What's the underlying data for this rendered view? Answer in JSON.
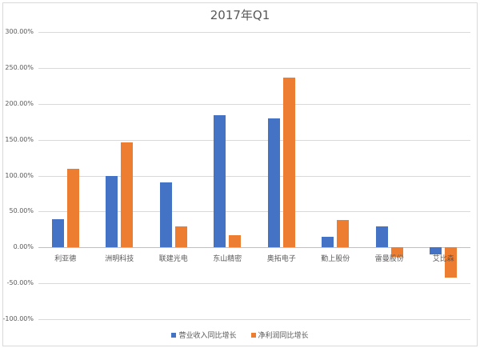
{
  "chart_data": {
    "type": "bar",
    "title": "2017年Q1",
    "xlabel": "",
    "ylabel": "",
    "ylim": [
      -1.0,
      3.0
    ],
    "y_ticks": [
      "300.00%",
      "250.00%",
      "200.00%",
      "150.00%",
      "100.00%",
      "50.00%",
      "0.00%",
      "-50.00%",
      "-100.00%"
    ],
    "y_tick_values": [
      3.0,
      2.5,
      2.0,
      1.5,
      1.0,
      0.5,
      0.0,
      -0.5,
      -1.0
    ],
    "grid": true,
    "legend_position": "bottom",
    "categories": [
      "利亚德",
      "洲明科技",
      "联建光电",
      "东山精密",
      "奥拓电子",
      "勤上股份",
      "雷曼股份",
      "艾比森"
    ],
    "series": [
      {
        "name": "营业收入同比增长",
        "color": "#4472c4",
        "values": [
          0.39,
          1.0,
          0.9,
          1.84,
          1.8,
          0.15,
          0.29,
          -0.1
        ]
      },
      {
        "name": "净利润同比增长",
        "color": "#ed7d31",
        "values": [
          1.1,
          1.46,
          0.29,
          0.17,
          2.37,
          0.38,
          -0.13,
          -0.42
        ]
      }
    ]
  }
}
